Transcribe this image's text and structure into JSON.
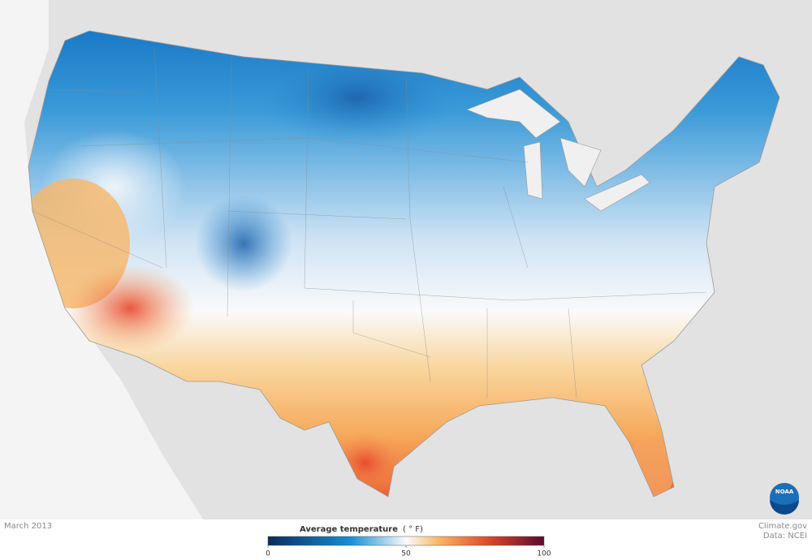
{
  "date": "March 2013",
  "legend": {
    "title": "Average temperature",
    "unit": "( ° F)",
    "lim": [
      0,
      100
    ],
    "ticks": [
      0,
      50,
      100
    ]
  },
  "credit": {
    "source": "Climate.gov",
    "data": "Data: NCEI"
  },
  "logo": "NOAA"
}
